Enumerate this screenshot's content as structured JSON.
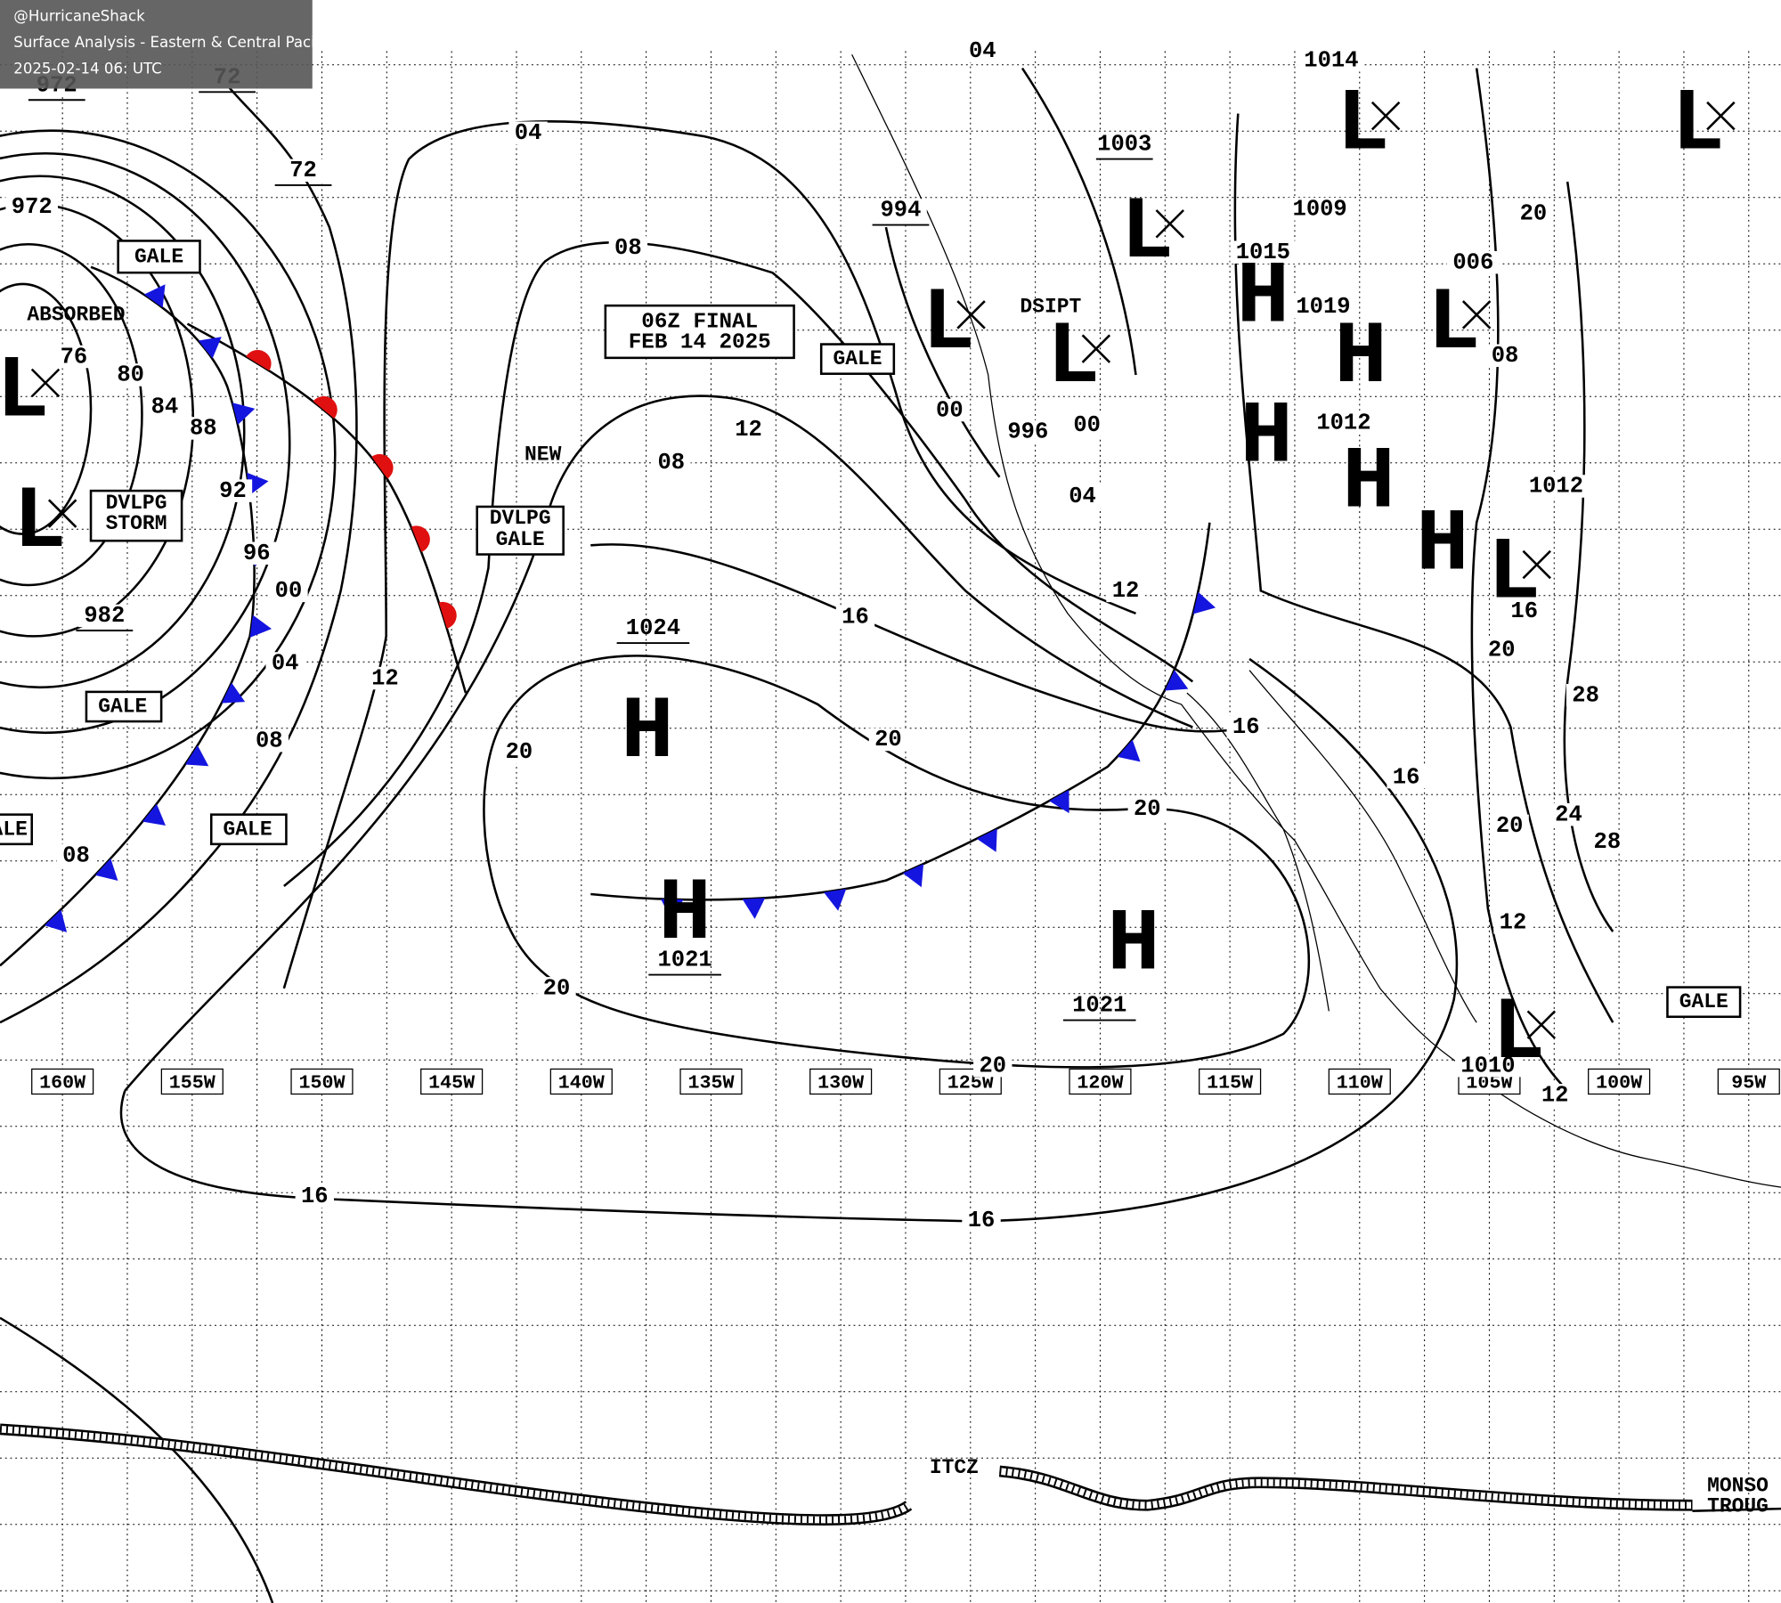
{
  "header": {
    "handle": "@HurricaneShack",
    "title": "Surface Analysis - Eastern & Central Pacific Ocean",
    "timestamp": "2025-02-14 06: UTC"
  },
  "map": {
    "title_box": [
      "06Z FINAL",
      "FEB 14 2025"
    ],
    "longitudes": [
      "160W",
      "155W",
      "150W",
      "145W",
      "140W",
      "135W",
      "130W",
      "125W",
      "120W",
      "115W",
      "110W",
      "105W",
      "100W",
      "95W"
    ],
    "isobar_labels": [
      "972",
      "72",
      "72",
      "04",
      "04",
      "08",
      "972",
      "76",
      "80",
      "84",
      "88",
      "92",
      "96",
      "00",
      "04",
      "08",
      "12",
      "982",
      "08",
      "12",
      "08",
      "16",
      "20",
      "20",
      "20",
      "20",
      "20",
      "16",
      "16",
      "16",
      "16",
      "994",
      "00",
      "00",
      "996",
      "04",
      "1003",
      "1014",
      "1009",
      "1015",
      "1019",
      "1012",
      "1012",
      "006",
      "20",
      "20",
      "20",
      "24",
      "28",
      "28",
      "12",
      "12",
      "1010",
      "08",
      "12",
      "16"
    ],
    "pressure_centers": [
      {
        "symbol": "H",
        "value": "1024"
      },
      {
        "symbol": "H",
        "value": "1021"
      },
      {
        "symbol": "H",
        "value": "1021"
      },
      {
        "symbol": "L"
      },
      {
        "symbol": "L"
      },
      {
        "symbol": "L"
      },
      {
        "symbol": "L"
      },
      {
        "symbol": "L"
      },
      {
        "symbol": "L"
      },
      {
        "symbol": "L"
      },
      {
        "symbol": "L"
      },
      {
        "symbol": "L"
      },
      {
        "symbol": "L"
      },
      {
        "symbol": "H"
      },
      {
        "symbol": "H"
      },
      {
        "symbol": "H"
      },
      {
        "symbol": "H"
      },
      {
        "symbol": "H"
      }
    ],
    "features": [
      "GALE",
      "GALE",
      "GALE",
      "ALE",
      "GALE",
      "GALE",
      "DVLPG",
      "STORM",
      "DVLPG",
      "GALE",
      "ABSORBED",
      "NEW",
      "DSIPT",
      "ITCZ",
      "MONSO",
      "TROUG"
    ]
  }
}
